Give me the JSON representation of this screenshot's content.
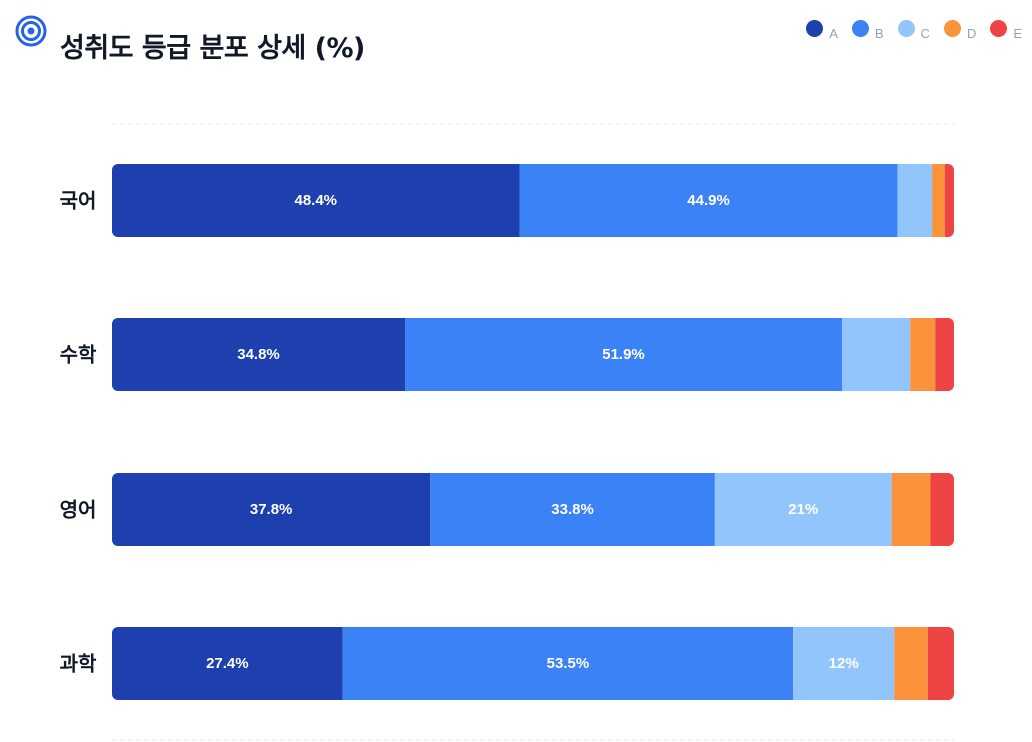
{
  "header": {
    "title": "성취도 등급 분포 상세 (%)",
    "icon": "target-icon"
  },
  "chart_data": {
    "type": "bar",
    "orientation": "horizontal",
    "stacked": true,
    "title": "성취도 등급 분포 상세 (%)",
    "categories": [
      "국어",
      "수학",
      "영어",
      "과학"
    ],
    "series": [
      {
        "name": "A",
        "color": "#1e40af",
        "values": [
          48.4,
          34.8,
          37.8,
          27.4
        ]
      },
      {
        "name": "B",
        "color": "#3b82f6",
        "values": [
          44.9,
          51.9,
          33.8,
          53.5
        ]
      },
      {
        "name": "C",
        "color": "#93c5fd",
        "values": [
          4.1,
          8.1,
          21,
          12
        ]
      },
      {
        "name": "D",
        "color": "#fb923c",
        "values": [
          1.5,
          3.0,
          4.6,
          4.0
        ]
      },
      {
        "name": "E",
        "color": "#ef4444",
        "values": [
          1.1,
          2.2,
          2.8,
          3.1
        ]
      }
    ],
    "data_labels": [
      [
        "48.4%",
        "44.9%",
        "",
        "",
        ""
      ],
      [
        "34.8%",
        "51.9%",
        "",
        "",
        ""
      ],
      [
        "37.8%",
        "33.8%",
        "21%",
        "",
        ""
      ],
      [
        "27.4%",
        "53.5%",
        "12%",
        "",
        ""
      ]
    ],
    "xlim": [
      0,
      100
    ],
    "legend_position": "top-right",
    "grid": false
  }
}
